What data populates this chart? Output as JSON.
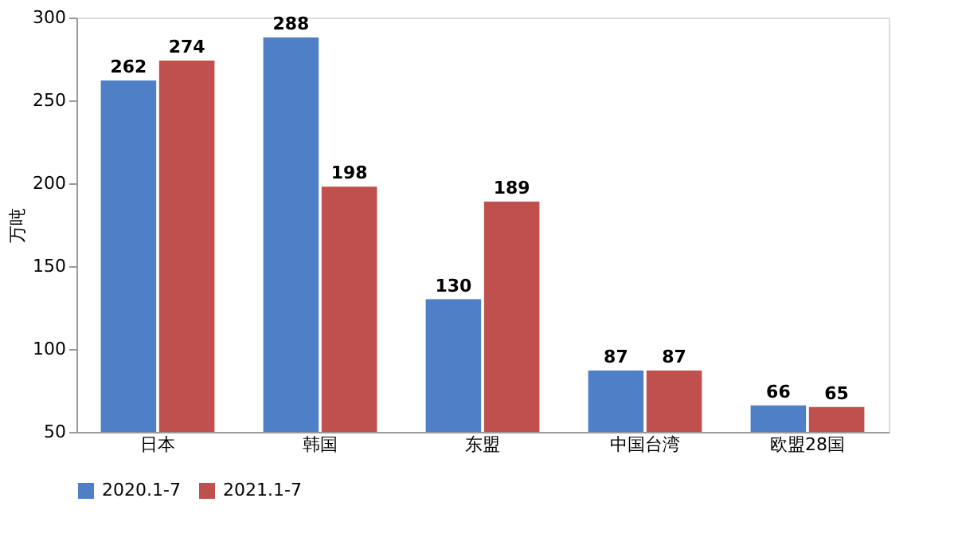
{
  "chart_data": {
    "type": "bar",
    "ylabel": "万吨",
    "categories": [
      "日本",
      "韩国",
      "东盟",
      "中国台湾",
      "欧盟28国"
    ],
    "series": [
      {
        "name": "2020.1-7",
        "color": "#4f7fc6",
        "values": [
          262,
          288,
          130,
          87,
          66
        ]
      },
      {
        "name": "2021.1-7",
        "color": "#c0504d",
        "values": [
          274,
          198,
          189,
          87,
          65
        ]
      }
    ],
    "ylim": [
      50,
      300
    ],
    "yticks": [
      50,
      100,
      150,
      200,
      250,
      300
    ],
    "grid": false,
    "legend": "bottom",
    "data_labels": true
  }
}
